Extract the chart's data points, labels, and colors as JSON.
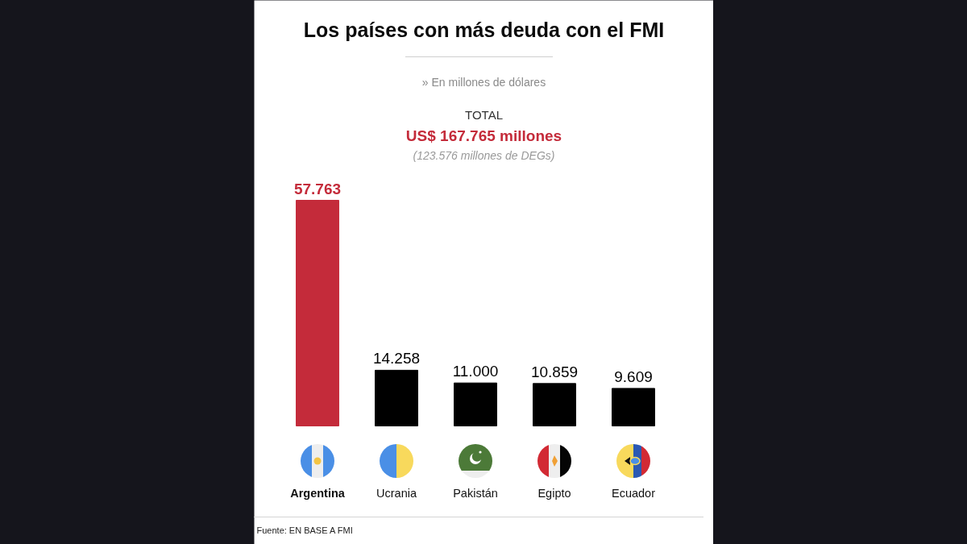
{
  "chart_data": {
    "type": "bar",
    "title": "Los países con más deuda con el FMI",
    "subtitle": "» En millones de dólares",
    "categories": [
      "Argentina",
      "Ucrania",
      "Pakistán",
      "Egipto",
      "Ecuador"
    ],
    "values": [
      57763,
      14258,
      11000,
      10859,
      9609
    ],
    "colors": [
      "#c42b3a",
      "#000000",
      "#000000",
      "#000000",
      "#000000"
    ],
    "value_labels": [
      "57.763",
      "14.258",
      "11.000",
      "10.859",
      "9.609"
    ],
    "annotations": [
      "TOTAL",
      "US$ 167.765 millones",
      "(123.576 millones de DEGs)",
      "Fuente: EN BASE A FMI"
    ]
  }
}
